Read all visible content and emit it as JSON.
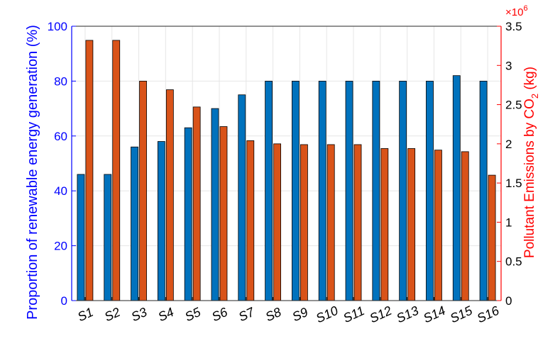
{
  "chart_data": {
    "type": "bar",
    "categories": [
      "S1",
      "S2",
      "S3",
      "S4",
      "S5",
      "S6",
      "S7",
      "S8",
      "S9",
      "S10",
      "S11",
      "S12",
      "S13",
      "S14",
      "S15",
      "S16"
    ],
    "series": [
      {
        "axis": "left",
        "color": "#0072BD",
        "values": [
          46,
          46,
          56,
          58,
          63,
          70,
          75,
          80,
          80,
          80,
          80,
          80,
          80,
          80,
          82,
          80
        ]
      },
      {
        "axis": "right",
        "color": "#D95319",
        "values": [
          3.32,
          3.32,
          2.8,
          2.69,
          2.47,
          2.22,
          2.04,
          2.0,
          1.99,
          1.99,
          1.99,
          1.94,
          1.94,
          1.92,
          1.9,
          1.6
        ]
      }
    ],
    "ylabel_left": "Proportion of renewable energy generation (%)",
    "ylabel_right_main": "Pollutant Emissions by CO",
    "ylabel_right_sub": "2",
    "ylabel_right_tail": " (kg)",
    "ylim_left": [
      0,
      100
    ],
    "ylim_right": [
      0,
      3.5
    ],
    "yticks_left": [
      0,
      20,
      40,
      60,
      80,
      100
    ],
    "yticks_right": [
      0,
      0.5,
      1,
      1.5,
      2,
      2.5,
      3,
      3.5
    ],
    "right_exponent_base": "×10",
    "right_exponent_power": "6",
    "grid": true,
    "left_axis_color": "#0000FF",
    "right_axis_color": "#FF0000"
  }
}
